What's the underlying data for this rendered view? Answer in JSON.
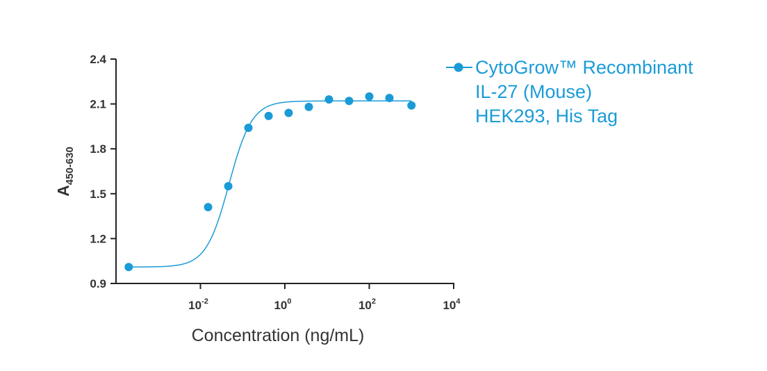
{
  "chart_data": {
    "type": "scatter",
    "title": "",
    "xlabel": "Concentration (ng/mL)",
    "ylabel": {
      "main": "A",
      "sub": "450-630"
    },
    "x_scale": "log",
    "xlim": [
      0.0001,
      10000
    ],
    "ylim": [
      0.9,
      2.4
    ],
    "x_ticks": [
      {
        "value": 0.01,
        "base": "10",
        "exp": "-2"
      },
      {
        "value": 1,
        "base": "10",
        "exp": "0"
      },
      {
        "value": 100,
        "base": "10",
        "exp": "2"
      },
      {
        "value": 10000,
        "base": "10",
        "exp": "4"
      }
    ],
    "y_ticks": [
      {
        "value": 0.9,
        "label": "0.9"
      },
      {
        "value": 1.2,
        "label": "1.2"
      },
      {
        "value": 1.5,
        "label": "1.5"
      },
      {
        "value": 1.8,
        "label": "1.8"
      },
      {
        "value": 2.1,
        "label": "2.1"
      },
      {
        "value": 2.4,
        "label": "2.4"
      }
    ],
    "grid": false,
    "legend_position": "top-right",
    "series": [
      {
        "name": [
          "CytoGrow™ Recombinant",
          "IL-27 (Mouse)",
          "HEK293, His Tag"
        ],
        "color": "#1a9bd7",
        "marker": "circle",
        "fit": "sigmoidal",
        "x": [
          0.0002,
          0.0152,
          0.0457,
          0.137,
          0.412,
          1.23,
          3.7,
          11.1,
          33.3,
          100,
          300,
          1000
        ],
        "y": [
          1.01,
          1.41,
          1.55,
          1.94,
          2.02,
          2.04,
          2.08,
          2.13,
          2.12,
          2.15,
          2.14,
          2.09
        ]
      }
    ]
  }
}
